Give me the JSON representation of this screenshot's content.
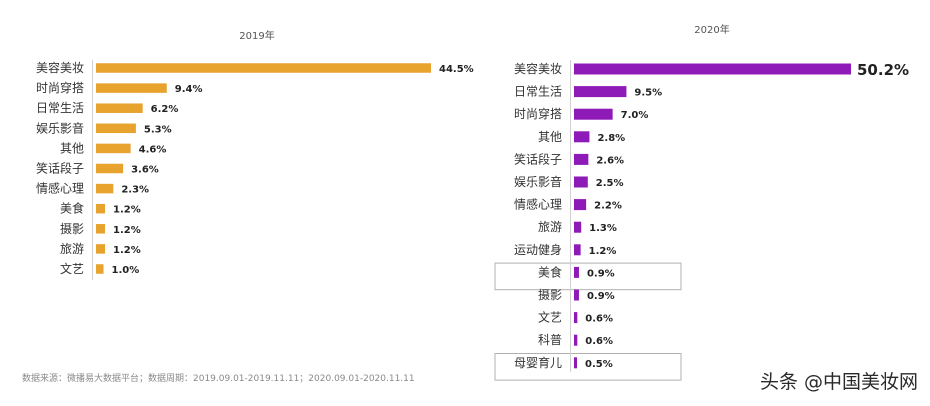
{
  "chart_data": [
    {
      "type": "bar",
      "orientation": "horizontal",
      "title": "2019年",
      "categories": [
        "美容美妆",
        "时尚穿搭",
        "日常生活",
        "娱乐影音",
        "其他",
        "笑话段子",
        "情感心理",
        "美食",
        "摄影",
        "旅游",
        "文艺"
      ],
      "values": [
        44.5,
        9.4,
        6.2,
        5.3,
        4.6,
        3.6,
        2.3,
        1.2,
        1.2,
        1.2,
        1.0
      ],
      "labels": [
        "44.5%",
        "9.4%",
        "6.2%",
        "5.3%",
        "4.6%",
        "3.6%",
        "2.3%",
        "1.2%",
        "1.2%",
        "1.2%",
        "1.0%"
      ],
      "color": "#E8A22E",
      "xlim": [
        0,
        44.5
      ],
      "grid": false,
      "legend": "none"
    },
    {
      "type": "bar",
      "orientation": "horizontal",
      "title": "2020年",
      "categories": [
        "美容美妆",
        "日常生活",
        "时尚穿搭",
        "其他",
        "笑话段子",
        "娱乐影音",
        "情感心理",
        "旅游",
        "运动健身",
        "美食",
        "摄影",
        "文艺",
        "科普",
        "母婴育儿"
      ],
      "values": [
        50.2,
        9.5,
        7.0,
        2.8,
        2.6,
        2.5,
        2.2,
        1.3,
        1.2,
        0.9,
        0.9,
        0.6,
        0.6,
        0.5
      ],
      "labels": [
        "50.2%",
        "9.5%",
        "7.0%",
        "2.8%",
        "2.6%",
        "2.5%",
        "2.2%",
        "1.3%",
        "1.2%",
        "0.9%",
        "0.9%",
        "0.6%",
        "0.6%",
        "0.5%"
      ],
      "highlighted": [
        "美食",
        "母婴育儿"
      ],
      "color": "#8E1AB8",
      "xlim": [
        0,
        50.2
      ],
      "grid": false,
      "legend": "none"
    }
  ],
  "footer": {
    "source": "数据来源：微播易大数据平台；数据周期：2019.09.01-2019.11.11；2020.09.01-2020.11.11"
  },
  "watermark": "头条 @中国美妆网",
  "colors": {
    "bar_2019": "#E8A22E",
    "bar_2020": "#8E1AB8",
    "axis": "#d0d0d0",
    "highlight_box": "#b0b0b0",
    "label": "#333333"
  }
}
